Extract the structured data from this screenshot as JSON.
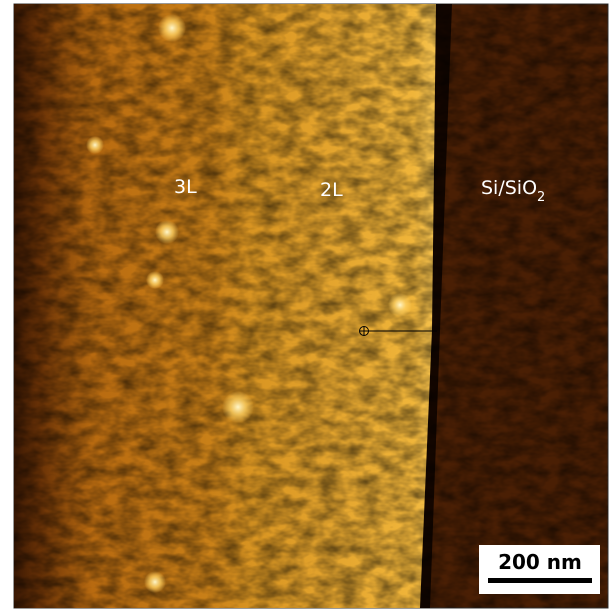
{
  "image": {
    "labels": {
      "three_layer": "3L",
      "two_layer": "2L",
      "substrate": {
        "text": "Si/SiO",
        "subscript": "2"
      }
    },
    "scale_bar": "200 nm"
  }
}
